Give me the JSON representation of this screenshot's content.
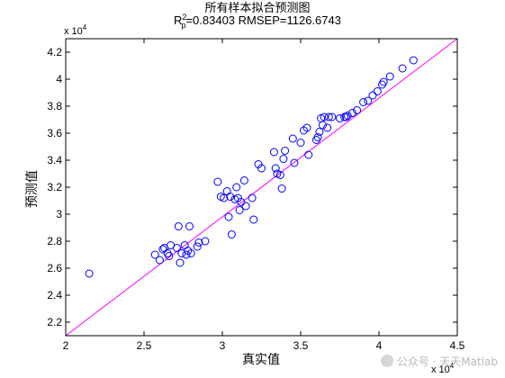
{
  "chart_data": {
    "type": "scatter",
    "title": "所有样本拟合预测图",
    "subtitle": "R_p^2=0.83403  RMSEP=1126.6743",
    "subtitle_parts": {
      "r": "R",
      "sup": "2",
      "sub": "p",
      "rest": "=0.83403  RMSEP=1126.6743"
    },
    "xlabel": "真实值",
    "ylabel": "预测值",
    "x_scale_label": "x 10",
    "y_scale_label": "x 10",
    "scale_exponent": "4",
    "xlim": [
      2.0,
      4.5
    ],
    "ylim": [
      2.1,
      4.3
    ],
    "xticks": [
      2,
      2.5,
      3,
      3.5,
      4,
      4.5
    ],
    "xtick_labels": [
      "2",
      "2.5",
      "3",
      "3.5",
      "4",
      "4.5"
    ],
    "yticks": [
      2.2,
      2.4,
      2.6,
      2.8,
      3.0,
      3.2,
      3.4,
      3.6,
      3.8,
      4.0,
      4.2
    ],
    "ytick_labels": [
      "2.2",
      "2.4",
      "2.6",
      "2.8",
      "3",
      "3.2",
      "3.4",
      "3.6",
      "3.8",
      "4",
      "4.2"
    ],
    "marker_color": "#0000ff",
    "line_color": "#ff00ff",
    "reference_line": {
      "type": "y=x",
      "from": [
        2.0,
        2.1
      ],
      "to": [
        4.5,
        4.3
      ]
    },
    "series": [
      {
        "points": [
          [
            2.15,
            2.56
          ],
          [
            2.57,
            2.7
          ],
          [
            2.6,
            2.66
          ],
          [
            2.62,
            2.74
          ],
          [
            2.63,
            2.75
          ],
          [
            2.65,
            2.71
          ],
          [
            2.66,
            2.69
          ],
          [
            2.67,
            2.77
          ],
          [
            2.71,
            2.75
          ],
          [
            2.72,
            2.91
          ],
          [
            2.73,
            2.64
          ],
          [
            2.74,
            2.71
          ],
          [
            2.76,
            2.77
          ],
          [
            2.77,
            2.7
          ],
          [
            2.78,
            2.73
          ],
          [
            2.79,
            2.91
          ],
          [
            2.8,
            2.71
          ],
          [
            2.84,
            2.76
          ],
          [
            2.85,
            2.79
          ],
          [
            2.89,
            2.8
          ],
          [
            2.97,
            3.24
          ],
          [
            2.99,
            3.13
          ],
          [
            3.01,
            3.12
          ],
          [
            3.03,
            3.17
          ],
          [
            3.04,
            2.98
          ],
          [
            3.05,
            3.13
          ],
          [
            3.06,
            2.85
          ],
          [
            3.08,
            3.11
          ],
          [
            3.09,
            3.2
          ],
          [
            3.1,
            3.12
          ],
          [
            3.11,
            3.03
          ],
          [
            3.12,
            3.09
          ],
          [
            3.14,
            3.25
          ],
          [
            3.15,
            3.06
          ],
          [
            3.19,
            3.12
          ],
          [
            3.2,
            2.96
          ],
          [
            3.23,
            3.37
          ],
          [
            3.25,
            3.34
          ],
          [
            3.33,
            3.46
          ],
          [
            3.34,
            3.34
          ],
          [
            3.35,
            3.3
          ],
          [
            3.37,
            3.29
          ],
          [
            3.38,
            3.19
          ],
          [
            3.39,
            3.41
          ],
          [
            3.4,
            3.47
          ],
          [
            3.45,
            3.56
          ],
          [
            3.46,
            3.38
          ],
          [
            3.5,
            3.53
          ],
          [
            3.52,
            3.62
          ],
          [
            3.54,
            3.64
          ],
          [
            3.55,
            3.44
          ],
          [
            3.6,
            3.55
          ],
          [
            3.61,
            3.57
          ],
          [
            3.62,
            3.61
          ],
          [
            3.63,
            3.71
          ],
          [
            3.64,
            3.66
          ],
          [
            3.65,
            3.72
          ],
          [
            3.67,
            3.64
          ],
          [
            3.68,
            3.72
          ],
          [
            3.7,
            3.72
          ],
          [
            3.75,
            3.71
          ],
          [
            3.78,
            3.72
          ],
          [
            3.79,
            3.72
          ],
          [
            3.8,
            3.73
          ],
          [
            3.83,
            3.75
          ],
          [
            3.86,
            3.77
          ],
          [
            3.9,
            3.83
          ],
          [
            3.93,
            3.84
          ],
          [
            3.96,
            3.88
          ],
          [
            3.99,
            3.91
          ],
          [
            4.02,
            3.96
          ],
          [
            4.03,
            3.98
          ],
          [
            4.07,
            4.02
          ],
          [
            4.15,
            4.08
          ],
          [
            4.22,
            4.14
          ]
        ]
      }
    ]
  },
  "watermark": {
    "text": "公众号 · 天天Matlab"
  }
}
